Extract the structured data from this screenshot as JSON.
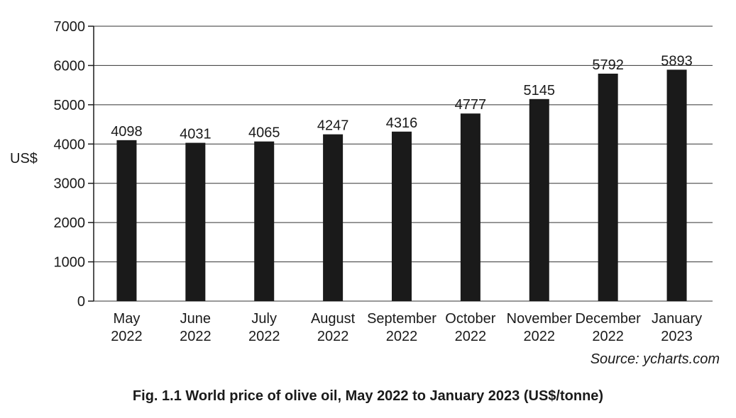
{
  "chart_data": {
    "type": "bar",
    "categories": [
      [
        "May",
        "2022"
      ],
      [
        "June",
        "2022"
      ],
      [
        "July",
        "2022"
      ],
      [
        "August",
        "2022"
      ],
      [
        "September",
        "2022"
      ],
      [
        "October",
        "2022"
      ],
      [
        "November",
        "2022"
      ],
      [
        "December",
        "2022"
      ],
      [
        "January",
        "2023"
      ]
    ],
    "values": [
      4098,
      4031,
      4065,
      4247,
      4316,
      4777,
      5145,
      5792,
      5893
    ],
    "value_labels": [
      "4098",
      "4031",
      "4065",
      "4247",
      "4316",
      "4777",
      "5145",
      "5792",
      "5893"
    ],
    "ylabel": "US$",
    "ylim": [
      0,
      7000
    ],
    "yticks": [
      "0",
      "1000",
      "2000",
      "3000",
      "4000",
      "5000",
      "6000",
      "7000"
    ],
    "grid": true,
    "bar_color": "#1a1a1a",
    "source": "Source: ycharts.com",
    "caption": "Fig. 1.1 World price of olive oil, May 2022 to January 2023 (US$/tonne)"
  }
}
